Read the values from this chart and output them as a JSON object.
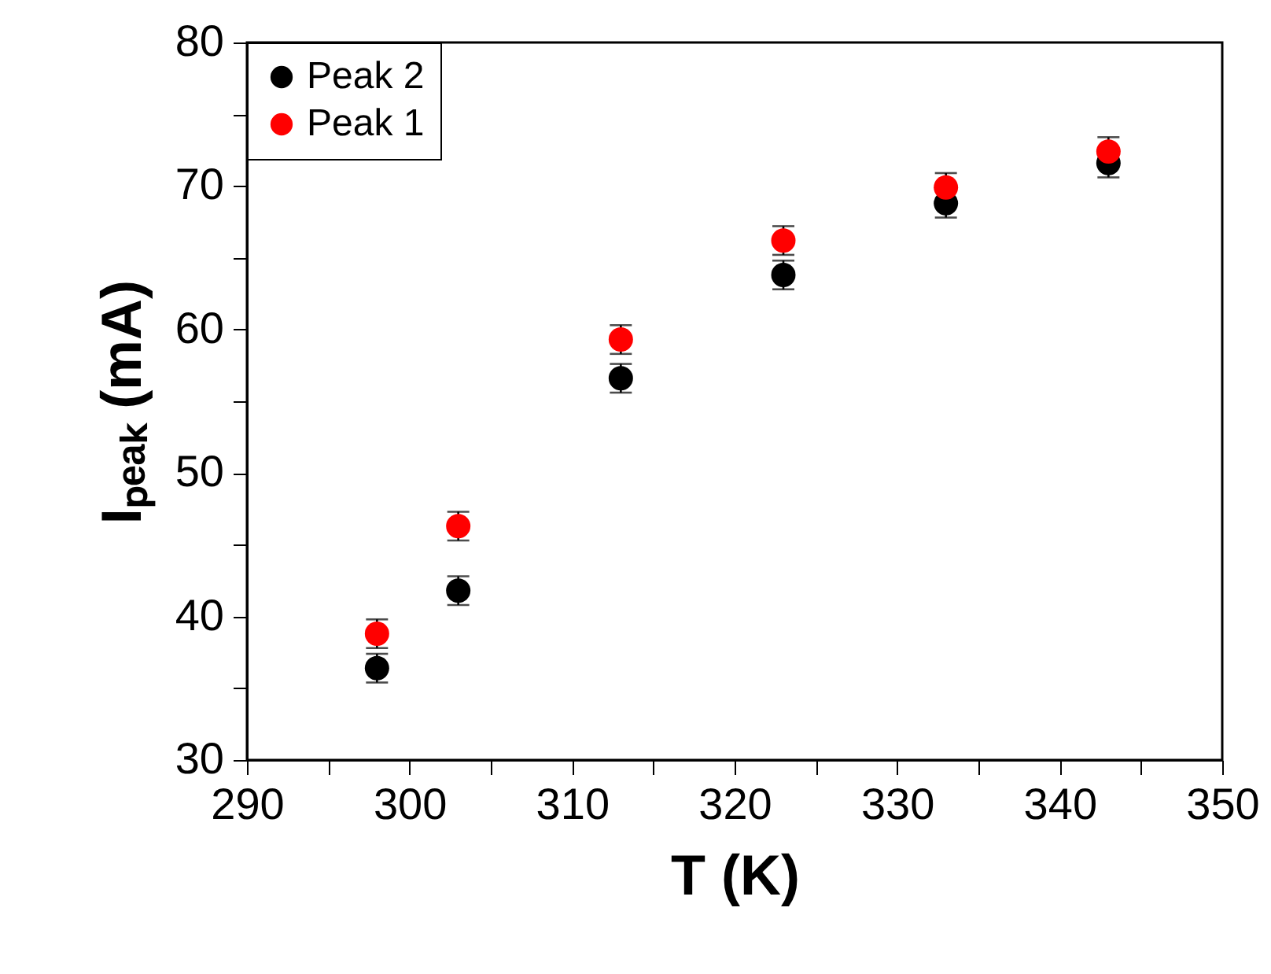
{
  "chart_data": {
    "type": "scatter",
    "xlabel": "T  (K)",
    "ylabel": "Iₚₑₐₖ  (mA)",
    "x": [
      298,
      303,
      313,
      323,
      333,
      343
    ],
    "series": [
      {
        "name": "Peak 2",
        "color": "#000000",
        "values": [
          36.4,
          41.8,
          56.6,
          63.8,
          68.8,
          71.6
        ],
        "errors": [
          1.0,
          1.0,
          1.0,
          1.0,
          1.0,
          1.0
        ]
      },
      {
        "name": "Peak 1",
        "color": "#ff0000",
        "values": [
          38.8,
          46.3,
          59.3,
          66.2,
          69.9,
          72.4
        ],
        "errors": [
          1.0,
          1.0,
          1.0,
          1.0,
          1.0,
          1.0
        ]
      }
    ],
    "xlim": [
      290,
      350
    ],
    "xticks": [
      290,
      {
        "value": 295,
        "label": null
      },
      300,
      {
        "value": 305,
        "label": null
      },
      310,
      {
        "value": 315,
        "label": null
      },
      320,
      {
        "value": 325,
        "label": null
      },
      330,
      {
        "value": 335,
        "label": null
      },
      340,
      {
        "value": 345,
        "label": null
      },
      350
    ],
    "ylim": [
      30,
      80
    ],
    "yticks": [
      30,
      {
        "value": 35,
        "label": null
      },
      40,
      {
        "value": 45,
        "label": null
      },
      50,
      {
        "value": 55,
        "label": null
      },
      60,
      {
        "value": 65,
        "label": null
      },
      70,
      {
        "value": 75,
        "label": null
      },
      80
    ],
    "grid": false,
    "legend": "top left",
    "marker": "circle"
  }
}
